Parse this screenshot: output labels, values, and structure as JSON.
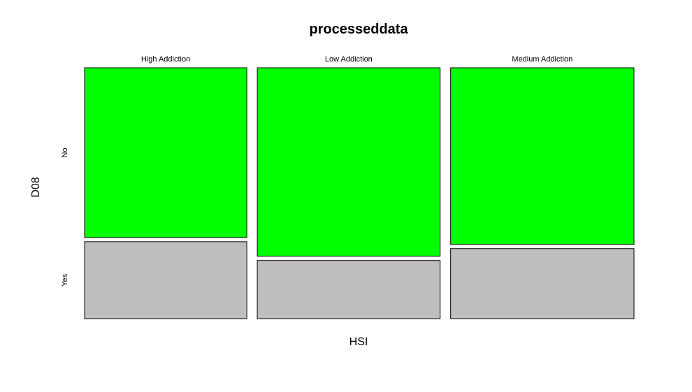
{
  "chart_data": {
    "type": "mosaic",
    "title": "processeddata",
    "xlabel": "HSI",
    "ylabel": "D08",
    "categories": [
      "High Addiction",
      "Low Addiction",
      "Medium Addiction"
    ],
    "levels": [
      "No",
      "Yes"
    ],
    "column_shares": [
      0.307,
      0.346,
      0.347
    ],
    "series": [
      {
        "name": "No",
        "values": [
          0.688,
          0.764,
          0.716
        ]
      },
      {
        "name": "Yes",
        "values": [
          0.312,
          0.236,
          0.284
        ]
      }
    ],
    "colors": {
      "No": "#00ff00",
      "Yes": "#bebebe"
    }
  }
}
